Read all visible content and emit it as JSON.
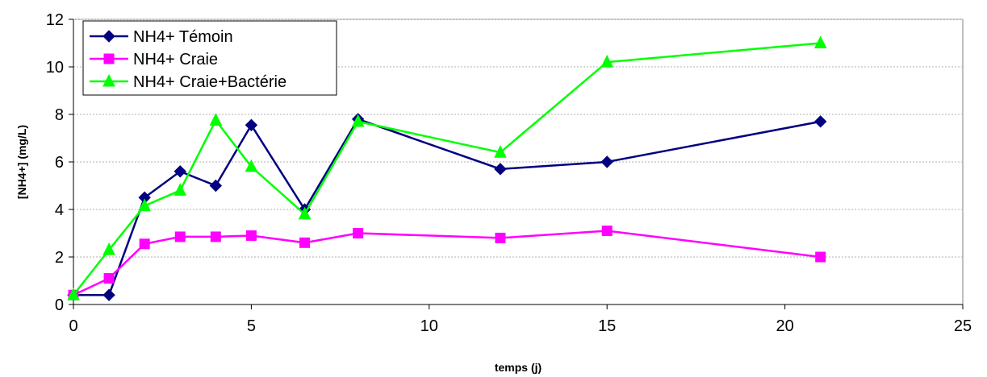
{
  "chart_data": {
    "type": "line",
    "xlabel": "temps (j)",
    "ylabel": "[NH4+] (mg/L)",
    "xlim": [
      0,
      25
    ],
    "ylim": [
      0,
      12
    ],
    "x_ticks": [
      0,
      5,
      10,
      15,
      20,
      25
    ],
    "y_ticks": [
      0,
      2,
      4,
      6,
      8,
      10,
      12
    ],
    "grid": "horizontal",
    "legend_position": "top-left",
    "series": [
      {
        "name": "NH4+ Témoin",
        "color": "#000080",
        "marker": "diamond",
        "x": [
          0,
          1,
          2,
          3,
          4,
          5,
          6.5,
          8,
          12,
          15,
          21
        ],
        "values": [
          0.4,
          0.4,
          4.5,
          5.6,
          5.0,
          7.55,
          4.0,
          7.8,
          5.7,
          6.0,
          7.7
        ]
      },
      {
        "name": "NH4+ Craie",
        "color": "#ff00ff",
        "marker": "square",
        "x": [
          0,
          1,
          2,
          3,
          4,
          5,
          6.5,
          8,
          12,
          15,
          21
        ],
        "values": [
          0.4,
          1.1,
          2.55,
          2.85,
          2.85,
          2.9,
          2.6,
          3.0,
          2.8,
          3.1,
          2.0
        ]
      },
      {
        "name": "NH4+ Craie+Bactérie",
        "color": "#00ff00",
        "marker": "triangle",
        "x": [
          0,
          1,
          2,
          3,
          4,
          5,
          6.5,
          8,
          12,
          15,
          21
        ],
        "values": [
          0.4,
          2.3,
          4.15,
          4.8,
          7.75,
          5.8,
          3.8,
          7.7,
          6.4,
          10.2,
          11.0
        ]
      }
    ]
  }
}
